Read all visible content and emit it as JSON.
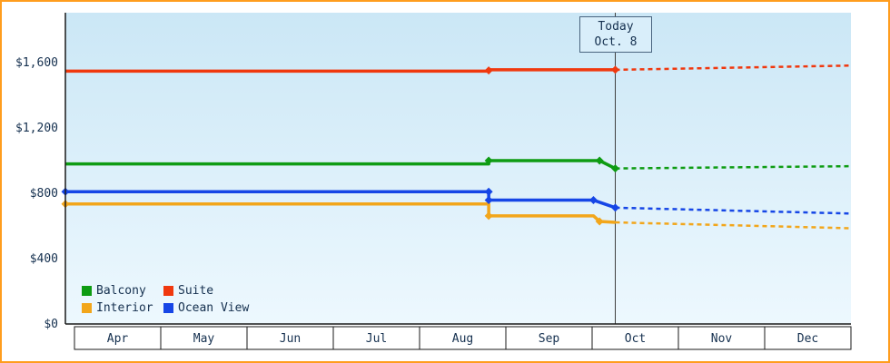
{
  "chart_data": {
    "type": "line",
    "title": "",
    "xlabel": "",
    "ylabel": "",
    "ylim": [
      0,
      1900
    ],
    "x_unit": "months, Apr=0 through Dec=9",
    "x_months": [
      "Apr",
      "May",
      "Jun",
      "Jul",
      "Aug",
      "Sep",
      "Oct",
      "Nov",
      "Dec"
    ],
    "y_ticks": [
      {
        "v": 0,
        "label": "$0"
      },
      {
        "v": 400,
        "label": "$400"
      },
      {
        "v": 800,
        "label": "$800"
      },
      {
        "v": 1200,
        "label": "$1,200"
      },
      {
        "v": 1600,
        "label": "$1,600"
      }
    ],
    "today": {
      "x": 6.3,
      "line1": "Today",
      "line2": "Oct. 8"
    },
    "legend_position": "bottom-left inside plot, 2 columns",
    "series": [
      {
        "name": "Balcony",
        "color": "#0e9c13",
        "solid": [
          [
            0,
            980
          ],
          [
            4.85,
            980
          ],
          [
            4.85,
            1000
          ],
          [
            6.12,
            1000
          ],
          [
            6.3,
            952
          ]
        ],
        "dashed": [
          [
            6.3,
            952
          ],
          [
            9,
            966
          ]
        ],
        "markers": [
          [
            4.85,
            1000
          ],
          [
            6.12,
            1000
          ],
          [
            6.3,
            952
          ]
        ]
      },
      {
        "name": "Suite",
        "color": "#f0380e",
        "solid": [
          [
            0,
            1548
          ],
          [
            4.85,
            1548
          ],
          [
            4.85,
            1556
          ],
          [
            6.3,
            1556
          ]
        ],
        "dashed": [
          [
            6.3,
            1556
          ],
          [
            9,
            1582
          ]
        ],
        "markers": [
          [
            4.85,
            1552
          ],
          [
            6.3,
            1556
          ]
        ]
      },
      {
        "name": "Interior",
        "color": "#f2a61b",
        "solid": [
          [
            0,
            735
          ],
          [
            4.85,
            735
          ],
          [
            4.85,
            662
          ],
          [
            6.05,
            662
          ],
          [
            6.12,
            628
          ],
          [
            6.3,
            622
          ]
        ],
        "dashed": [
          [
            6.3,
            622
          ],
          [
            9,
            586
          ]
        ],
        "markers": [
          [
            0,
            735
          ],
          [
            4.85,
            662
          ],
          [
            6.12,
            628
          ]
        ]
      },
      {
        "name": "Ocean View",
        "color": "#1646e6",
        "solid": [
          [
            0,
            810
          ],
          [
            4.85,
            810
          ],
          [
            4.85,
            758
          ],
          [
            6.05,
            758
          ],
          [
            6.3,
            712
          ]
        ],
        "dashed": [
          [
            6.3,
            712
          ],
          [
            9,
            676
          ]
        ],
        "markers": [
          [
            0,
            810
          ],
          [
            4.85,
            810
          ],
          [
            4.85,
            758
          ],
          [
            6.05,
            758
          ],
          [
            6.3,
            712
          ]
        ]
      }
    ],
    "colors": {
      "frame_border": "#ff9d1e",
      "plot_bg_top": "#cbe7f6",
      "plot_bg_bottom": "#edf8fe",
      "axis": "#1a1a1a",
      "today_line": "#3f3f3f",
      "month_cell_bg": "#ffffff",
      "text": "#15304f"
    }
  }
}
